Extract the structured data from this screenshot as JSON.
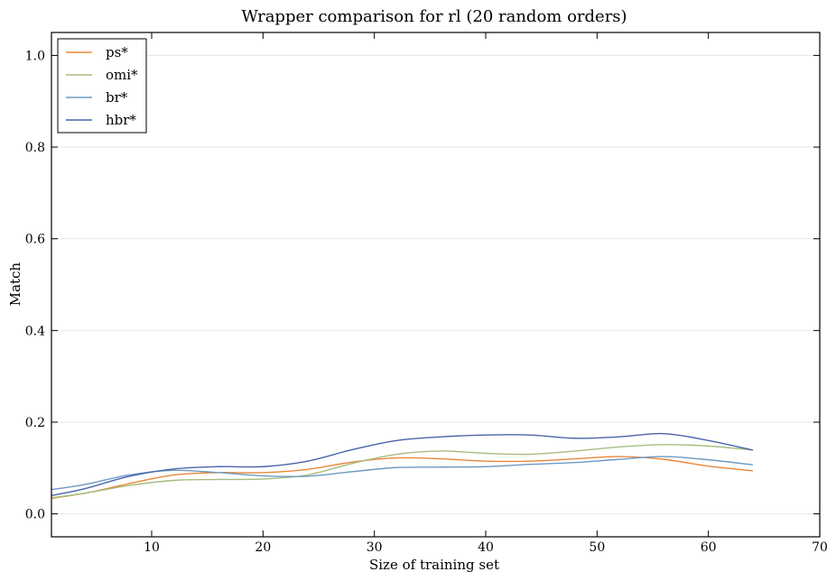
{
  "chart_data": {
    "type": "line",
    "title": "Wrapper comparison for rl (20 random orders)",
    "xlabel": "Size of training set",
    "ylabel": "Match",
    "xlim": [
      1,
      70
    ],
    "ylim": [
      -0.05,
      1.05
    ],
    "xticks": [
      10,
      20,
      30,
      40,
      50,
      60,
      70
    ],
    "yticks": [
      0.0,
      0.2,
      0.4,
      0.6,
      0.8,
      1.0
    ],
    "xtick_labels": [
      "10",
      "20",
      "30",
      "40",
      "50",
      "60",
      "70"
    ],
    "ytick_labels": [
      "0.0",
      "0.2",
      "0.4",
      "0.6",
      "0.8",
      "1.0"
    ],
    "grid": "horizontal",
    "legend_position": "top-left",
    "series": [
      {
        "name": "ps*",
        "color": "#e8873a",
        "x": [
          1,
          4,
          8,
          12,
          16,
          20,
          24,
          28,
          32,
          36,
          40,
          44,
          48,
          52,
          56,
          60,
          64
        ],
        "y": [
          0.034,
          0.045,
          0.066,
          0.085,
          0.09,
          0.09,
          0.097,
          0.113,
          0.122,
          0.12,
          0.115,
          0.115,
          0.12,
          0.125,
          0.119,
          0.104,
          0.094
        ]
      },
      {
        "name": "omi*",
        "color": "#a6bd7f",
        "x": [
          1,
          4,
          8,
          12,
          16,
          20,
          24,
          28,
          32,
          36,
          40,
          44,
          48,
          52,
          56,
          60,
          64
        ],
        "y": [
          0.035,
          0.045,
          0.062,
          0.073,
          0.075,
          0.076,
          0.085,
          0.11,
          0.13,
          0.137,
          0.132,
          0.13,
          0.137,
          0.146,
          0.151,
          0.148,
          0.139
        ]
      },
      {
        "name": "br*",
        "color": "#6e9ac4",
        "x": [
          1,
          4,
          8,
          12,
          16,
          20,
          24,
          28,
          32,
          36,
          40,
          44,
          48,
          52,
          56,
          60,
          64
        ],
        "y": [
          0.053,
          0.064,
          0.085,
          0.095,
          0.09,
          0.083,
          0.082,
          0.092,
          0.101,
          0.102,
          0.103,
          0.108,
          0.112,
          0.119,
          0.125,
          0.118,
          0.107
        ]
      },
      {
        "name": "hbr*",
        "color": "#4a64ab",
        "x": [
          1,
          4,
          8,
          12,
          16,
          20,
          24,
          28,
          32,
          36,
          40,
          44,
          48,
          52,
          56,
          60,
          64
        ],
        "y": [
          0.04,
          0.055,
          0.082,
          0.098,
          0.103,
          0.103,
          0.115,
          0.14,
          0.16,
          0.168,
          0.172,
          0.172,
          0.165,
          0.168,
          0.175,
          0.16,
          0.139
        ]
      }
    ]
  }
}
